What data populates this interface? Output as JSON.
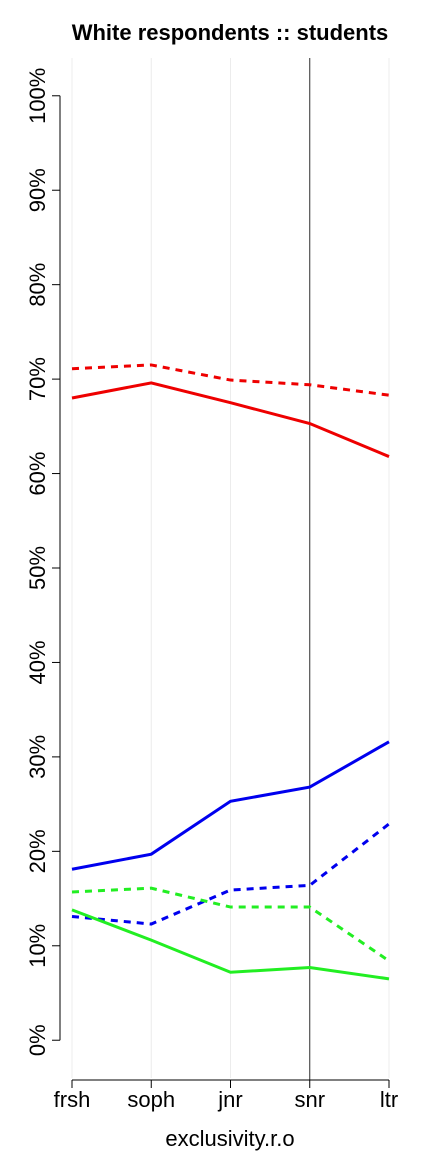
{
  "chart_data": {
    "type": "line",
    "title": "White respondents :: students",
    "x_label": "exclusivity.r.o",
    "categories": [
      "frsh",
      "soph",
      "jnr",
      "snr",
      "ltr"
    ],
    "series": [
      {
        "color": "#ee0000",
        "dashed": false,
        "values": [
          68.0,
          69.6,
          67.5,
          65.3,
          61.8
        ]
      },
      {
        "color": "#ee0000",
        "dashed": true,
        "values": [
          71.1,
          71.5,
          69.9,
          69.4,
          68.3
        ]
      },
      {
        "color": "#0000ee",
        "dashed": false,
        "values": [
          18.1,
          19.7,
          25.3,
          26.8,
          31.6
        ]
      },
      {
        "color": "#0000ee",
        "dashed": true,
        "values": [
          13.1,
          12.3,
          15.9,
          16.4,
          22.9
        ]
      },
      {
        "color": "#22ee22",
        "dashed": true,
        "values": [
          15.7,
          16.1,
          14.1,
          14.1,
          8.4
        ]
      },
      {
        "color": "#22ee22",
        "dashed": false,
        "values": [
          13.8,
          10.6,
          7.2,
          7.7,
          6.5
        ]
      }
    ],
    "ylim": [
      -4,
      104
    ],
    "yticks": [
      {
        "value": 0,
        "label": "0%"
      },
      {
        "value": 10,
        "label": "10%"
      },
      {
        "value": 20,
        "label": "20%"
      },
      {
        "value": 30,
        "label": "30%"
      },
      {
        "value": 40,
        "label": "40%"
      },
      {
        "value": 50,
        "label": "50%"
      },
      {
        "value": 60,
        "label": "60%"
      },
      {
        "value": 70,
        "label": "70%"
      },
      {
        "value": 80,
        "label": "80%"
      },
      {
        "value": 90,
        "label": "90%"
      },
      {
        "value": 100,
        "label": "100%"
      }
    ],
    "grid": true,
    "vline": "snr"
  }
}
